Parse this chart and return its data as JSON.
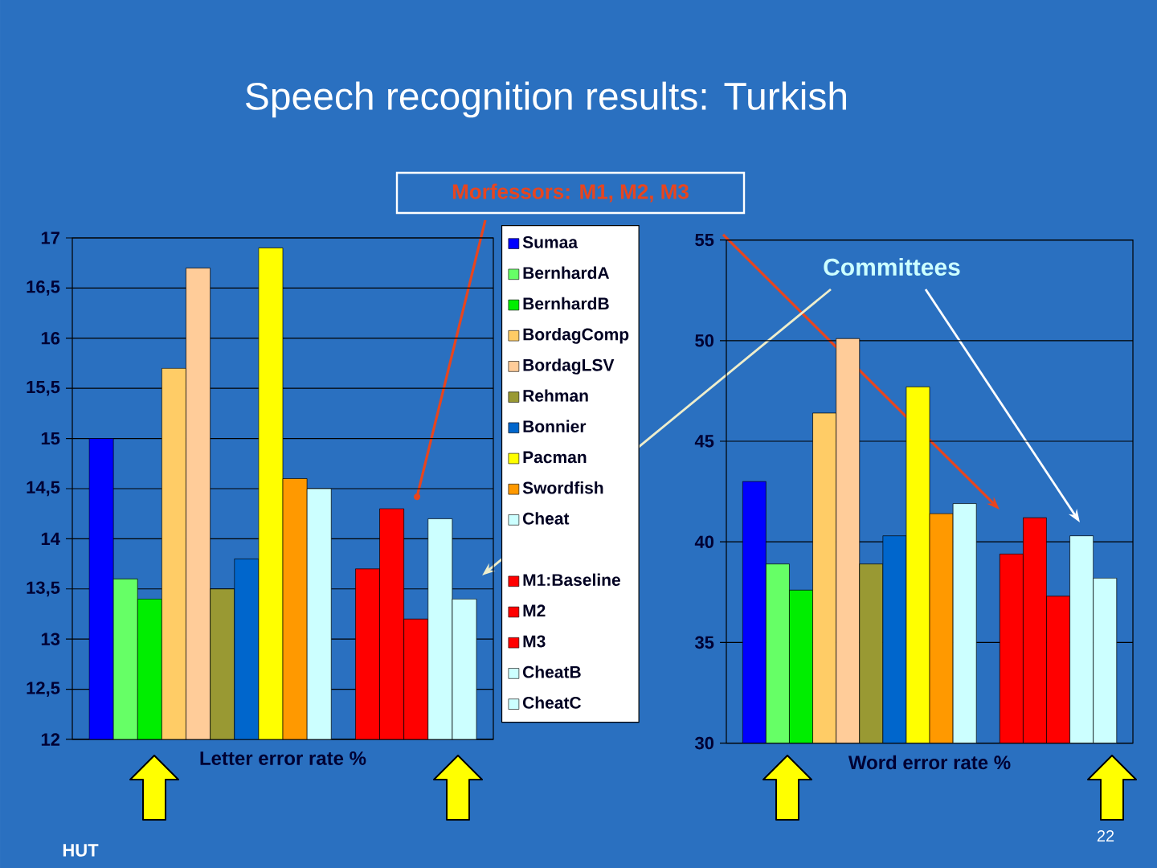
{
  "chart_data": [
    {
      "type": "bar",
      "title": "Speech recognition results:   Turkish",
      "xlabel": "Letter error rate %",
      "categories": [
        null
      ],
      "series": [
        {
          "name": "Sumaa",
          "color": "#0000ff",
          "values": [
            15.0
          ]
        },
        {
          "name": "BernhardA",
          "color": "#66ff66",
          "values": [
            13.6
          ]
        },
        {
          "name": "BernhardB",
          "color": "#00ee00",
          "values": [
            13.4
          ]
        },
        {
          "name": "BordagComp",
          "color": "#ffcc66",
          "values": [
            15.7
          ]
        },
        {
          "name": "BordagLSV",
          "color": "#ffcc99",
          "values": [
            16.7
          ]
        },
        {
          "name": "Rehman",
          "color": "#999933",
          "values": [
            13.5
          ]
        },
        {
          "name": "Bonnier",
          "color": "#0066cc",
          "values": [
            13.8
          ]
        },
        {
          "name": "Pacman",
          "color": "#ffff00",
          "values": [
            16.9
          ]
        },
        {
          "name": "Swordfish",
          "color": "#ff9900",
          "values": [
            14.6
          ]
        },
        {
          "name": "Cheat",
          "color": "#ccffff",
          "values": [
            14.5
          ]
        },
        {
          "values": [
            null
          ]
        },
        {
          "name": "M1:Baseline",
          "color": "#ff0000",
          "values": [
            13.7
          ]
        },
        {
          "name": "M2",
          "color": "#ff0000",
          "values": [
            14.3
          ]
        },
        {
          "name": "M3",
          "color": "#ff0000",
          "values": [
            13.2
          ]
        },
        {
          "name": "CheatB",
          "color": "#ccffff",
          "values": [
            14.2
          ]
        },
        {
          "name": "CheatC",
          "color": "#ccffff",
          "values": [
            13.4
          ]
        }
      ],
      "ylim": [
        12,
        17
      ],
      "yticks": [
        12,
        {
          "value": 12.5,
          "label": "12,5"
        },
        13,
        {
          "value": 13.5,
          "label": "13,5"
        },
        14,
        {
          "value": 14.5,
          "label": "14,5"
        },
        15,
        {
          "value": 15.5,
          "label": "15,5"
        },
        16,
        {
          "value": 16.5,
          "label": "16,5"
        },
        17
      ],
      "grid": "y",
      "legend": "right",
      "annotations": [
        "Morfessors: M1, M2, M3"
      ]
    },
    {
      "type": "bar",
      "xlabel": "Word error rate %",
      "categories": [
        null
      ],
      "series": [
        {
          "color": "#0000ff",
          "values": [
            43
          ]
        },
        {
          "color": "#66ff66",
          "values": [
            38.9
          ]
        },
        {
          "color": "#00ee00",
          "values": [
            37.6
          ]
        },
        {
          "color": "#ffcc66",
          "values": [
            46.4
          ]
        },
        {
          "color": "#ffcc99",
          "values": [
            50.1
          ]
        },
        {
          "color": "#999933",
          "values": [
            38.9
          ]
        },
        {
          "color": "#0066cc",
          "values": [
            40.3
          ]
        },
        {
          "color": "#ffff00",
          "values": [
            47.7
          ]
        },
        {
          "color": "#ff9900",
          "values": [
            41.4
          ]
        },
        {
          "color": "#ccffff",
          "values": [
            41.9
          ]
        },
        {
          "values": [
            null
          ]
        },
        {
          "color": "#ff0000",
          "values": [
            39.4
          ]
        },
        {
          "color": "#ff0000",
          "values": [
            41.2
          ]
        },
        {
          "color": "#ff0000",
          "values": [
            37.3
          ]
        },
        {
          "color": "#ccffff",
          "values": [
            40.3
          ]
        },
        {
          "color": "#ccffff",
          "values": [
            38.2
          ]
        }
      ],
      "ylim": [
        30,
        55
      ],
      "yticks": [
        30,
        35,
        40,
        45,
        50,
        55
      ],
      "grid": "y",
      "annotations": [
        "Committees",
        "HUT",
        "22"
      ]
    }
  ]
}
